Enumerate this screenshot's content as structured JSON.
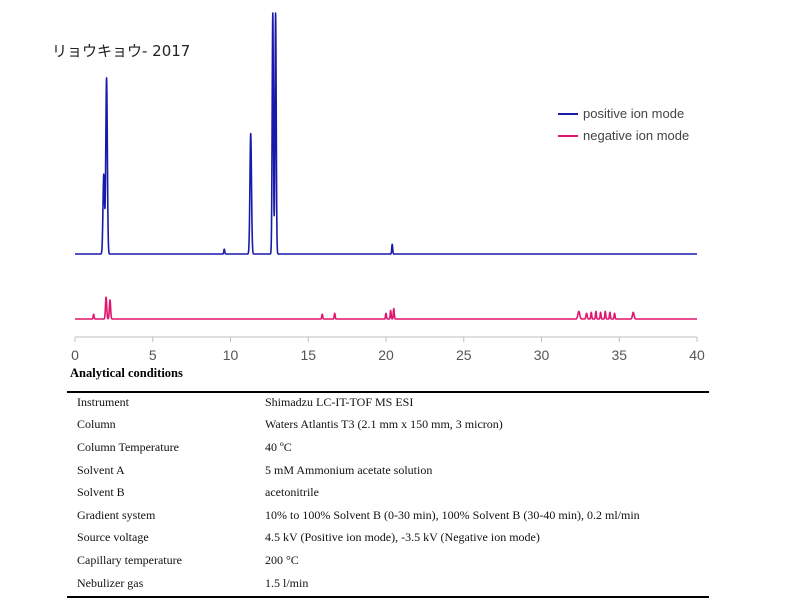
{
  "chart_data": {
    "type": "line",
    "title": "リョウキョウ- 2017",
    "xlim": [
      0,
      40
    ],
    "x_ticks": [
      "0",
      "5",
      "10",
      "15",
      "20",
      "25",
      "30",
      "35",
      "40"
    ],
    "legend_position": "right",
    "grid": false,
    "series": [
      {
        "name": "positive ion mode",
        "color": "#1a1aaa",
        "baseline": 0,
        "peaks": [
          {
            "x": 1.85,
            "height": 0.33,
            "width": 0.05
          },
          {
            "x": 2.03,
            "height": 0.73,
            "width": 0.05
          },
          {
            "x": 9.6,
            "height": 0.02,
            "width": 0.03
          },
          {
            "x": 11.3,
            "height": 0.5,
            "width": 0.05
          },
          {
            "x": 12.72,
            "height": 1.0,
            "width": 0.04
          },
          {
            "x": 12.9,
            "height": 1.0,
            "width": 0.04
          },
          {
            "x": 20.4,
            "height": 0.04,
            "width": 0.03
          }
        ]
      },
      {
        "name": "negative ion mode",
        "color": "#e0156d",
        "baseline": 0,
        "peaks": [
          {
            "x": 1.2,
            "height": 0.05,
            "width": 0.03
          },
          {
            "x": 2.0,
            "height": 0.23,
            "width": 0.04
          },
          {
            "x": 2.25,
            "height": 0.2,
            "width": 0.04
          },
          {
            "x": 15.9,
            "height": 0.05,
            "width": 0.03
          },
          {
            "x": 16.7,
            "height": 0.06,
            "width": 0.03
          },
          {
            "x": 20.0,
            "height": 0.06,
            "width": 0.03
          },
          {
            "x": 20.3,
            "height": 0.09,
            "width": 0.03
          },
          {
            "x": 20.5,
            "height": 0.11,
            "width": 0.03
          },
          {
            "x": 32.4,
            "height": 0.08,
            "width": 0.06
          },
          {
            "x": 32.9,
            "height": 0.06,
            "width": 0.04
          },
          {
            "x": 33.2,
            "height": 0.07,
            "width": 0.03
          },
          {
            "x": 33.5,
            "height": 0.08,
            "width": 0.03
          },
          {
            "x": 33.8,
            "height": 0.07,
            "width": 0.03
          },
          {
            "x": 34.1,
            "height": 0.08,
            "width": 0.03
          },
          {
            "x": 34.4,
            "height": 0.07,
            "width": 0.03
          },
          {
            "x": 34.7,
            "height": 0.06,
            "width": 0.03
          },
          {
            "x": 35.9,
            "height": 0.07,
            "width": 0.05
          }
        ]
      }
    ]
  },
  "conditions": {
    "title": "Analytical conditions",
    "rows": [
      {
        "param": "Instrument",
        "value": "Shimadzu LC-IT-TOF MS ESI"
      },
      {
        "param": "Column",
        "value": "Waters Atlantis T3 (2.1 mm x 150 mm, 3 micron)"
      },
      {
        "param": "Column Temperature",
        "value": "40 ºC"
      },
      {
        "param": "Solvent A",
        "value": "5 mM Ammonium acetate solution"
      },
      {
        "param": "Solvent B",
        "value": "acetonitrile"
      },
      {
        "param": "Gradient system",
        "value": "10% to 100% Solvent B (0-30 min), 100% Solvent B (30-40 min), 0.2 ml/min"
      },
      {
        "param": "Source voltage",
        "value": "4.5 kV (Positive ion mode), -3.5 kV (Negative ion mode)"
      },
      {
        "param": "Capillary temperature",
        "value": "200 °C"
      },
      {
        "param": "Nebulizer gas",
        "value": "1.5 l/min"
      }
    ]
  }
}
